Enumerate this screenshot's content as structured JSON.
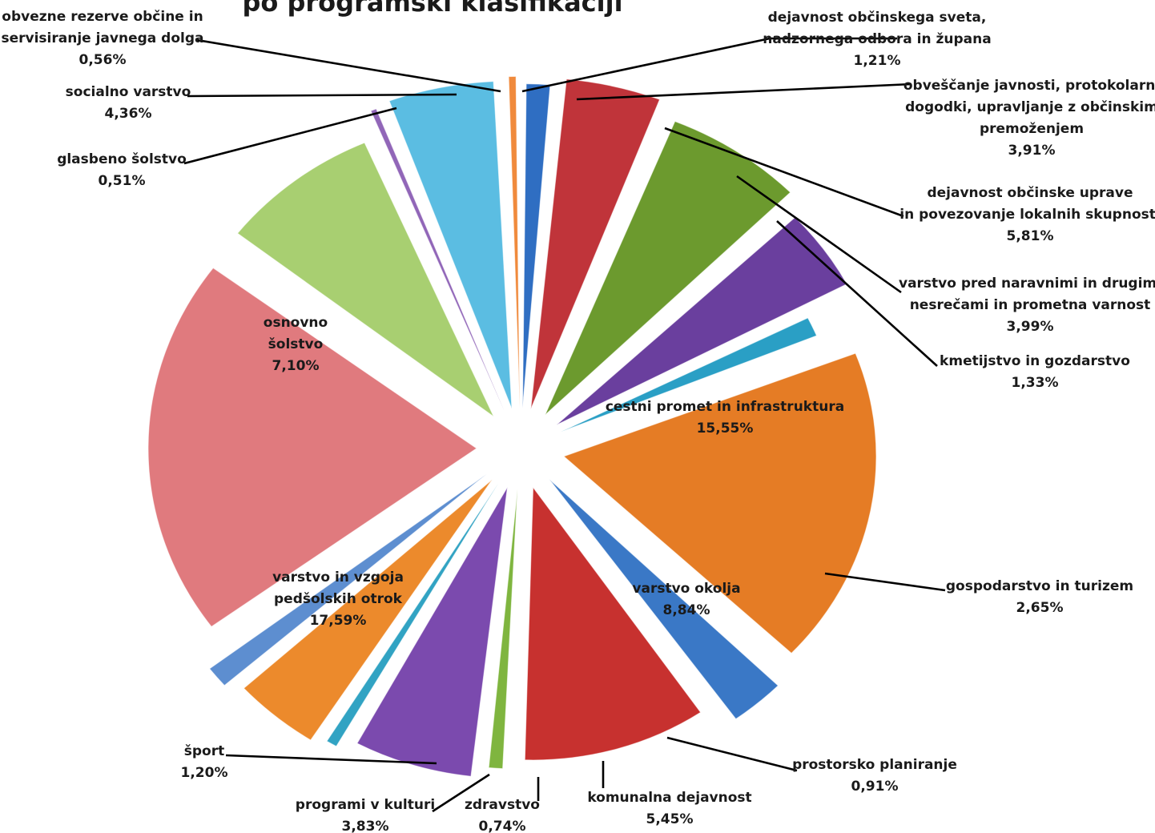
{
  "chart_data": {
    "type": "pie",
    "title": "po programski klasifikaciji",
    "slices": [
      {
        "label": [
          "dejavnost občinskega sveta,",
          "nadzornega odbora in župana"
        ],
        "value_label": "1,21%",
        "value": 1.21,
        "color": "#2f6ec2"
      },
      {
        "label": [
          "obveščanje javnosti, protokolarni",
          "dogodki, upravljanje z občinskim",
          "premoženjem"
        ],
        "value_label": "3,91%",
        "value": 3.91,
        "color": "#c0343a"
      },
      {
        "label": [
          "dejavnost občinske uprave",
          "in povezovanje lokalnih skupnosti"
        ],
        "value_label": "5,81%",
        "value": 5.81,
        "color": "#6c9a2e"
      },
      {
        "label": [
          "varstvo pred naravnimi in drugimi",
          "nesrečami in prometna varnost"
        ],
        "value_label": "3,99%",
        "value": 3.99,
        "color": "#6a3f9e"
      },
      {
        "label": [
          "kmetijstvo in gozdarstvo"
        ],
        "value_label": "1,33%",
        "value": 1.33,
        "color": "#2a9fc5"
      },
      {
        "label": [
          "cestni promet in infrastruktura"
        ],
        "value_label": "15,55%",
        "value": 15.55,
        "color": "#e57c25"
      },
      {
        "label": [
          "gospodarstvo in turizem"
        ],
        "value_label": "2,65%",
        "value": 2.65,
        "color": "#3a78c6"
      },
      {
        "label": [
          "varstvo okolja"
        ],
        "value_label": "8,84%",
        "value": 8.84,
        "color": "#c7312f"
      },
      {
        "label": [
          "prostorsko planiranje"
        ],
        "value_label": "0,91%",
        "value": 0.91,
        "color": "#7fb53f"
      },
      {
        "label": [
          "komunalna dejavnost"
        ],
        "value_label": "5,45%",
        "value": 5.45,
        "color": "#7b4aae"
      },
      {
        "label": [
          "zdravstvo"
        ],
        "value_label": "0,74%",
        "value": 0.74,
        "color": "#31a3c3"
      },
      {
        "label": [
          "programi v kulturi"
        ],
        "value_label": "3,83%",
        "value": 3.83,
        "color": "#ec8a2c"
      },
      {
        "label": [
          "šport"
        ],
        "value_label": "1,20%",
        "value": 1.2,
        "color": "#5d8ed0"
      },
      {
        "label": [
          "varstvo in vzgoja",
          "pedšolskih otrok"
        ],
        "value_label": "17,59%",
        "value": 17.59,
        "color": "#e07a7e"
      },
      {
        "label": [
          "osnovno",
          "šolstvo"
        ],
        "value_label": "7,10%",
        "value": 7.1,
        "color": "#a8cf71"
      },
      {
        "label": [
          "glasbeno šolstvo"
        ],
        "value_label": "0,51%",
        "value": 0.51,
        "color": "#9166b8"
      },
      {
        "label": [
          "socialno varstvo"
        ],
        "value_label": "4,36%",
        "value": 4.36,
        "color": "#5bbde2"
      },
      {
        "label": [
          "obvezne rezerve občine in",
          "servisiranje javnega dolga"
        ],
        "value_label": "0,56%",
        "value": 0.56,
        "color": "#f08a3c"
      }
    ]
  }
}
